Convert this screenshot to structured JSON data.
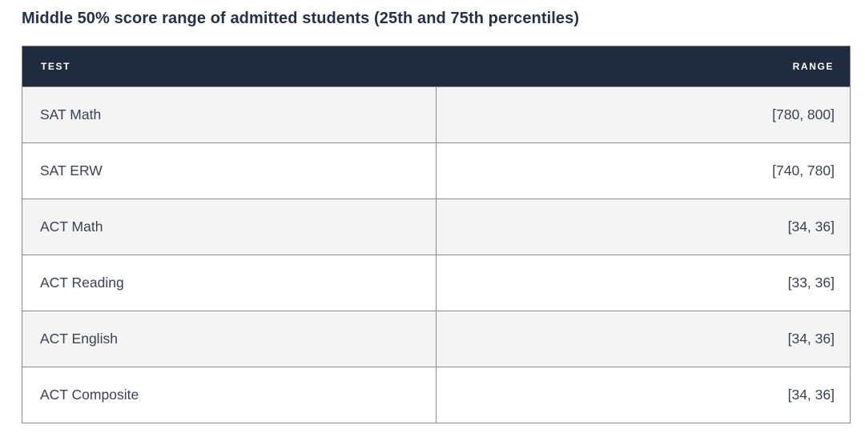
{
  "title": "Middle 50% score range of admitted students (25th and 75th percentiles)",
  "colors": {
    "header_bg": "#202c3e",
    "header_text": "#ffffff",
    "title_text": "#243148",
    "body_text": "#3a4254",
    "row_alt_bg": "#f4f4f5",
    "row_bg": "#ffffff",
    "border": "#8c8c8c"
  },
  "table": {
    "columns": [
      "TEST",
      "RANGE"
    ],
    "rows": [
      {
        "test": "SAT Math",
        "range": "[780, 800]"
      },
      {
        "test": "SAT ERW",
        "range": "[740, 780]"
      },
      {
        "test": "ACT Math",
        "range": "[34, 36]"
      },
      {
        "test": "ACT Reading",
        "range": "[33, 36]"
      },
      {
        "test": "ACT English",
        "range": "[34, 36]"
      },
      {
        "test": "ACT Composite",
        "range": "[34, 36]"
      }
    ]
  },
  "chart_data": {
    "type": "table",
    "title": "Middle 50% score range of admitted students (25th and 75th percentiles)",
    "columns": [
      "TEST",
      "RANGE"
    ],
    "rows": [
      [
        "SAT Math",
        "[780, 800]"
      ],
      [
        "SAT ERW",
        "[740, 780]"
      ],
      [
        "ACT Math",
        "[34, 36]"
      ],
      [
        "ACT Reading",
        "[33, 36]"
      ],
      [
        "ACT English",
        "[34, 36]"
      ],
      [
        "ACT Composite",
        "[34, 36]"
      ]
    ],
    "series": [
      {
        "name": "25th percentile",
        "categories": [
          "SAT Math",
          "SAT ERW",
          "ACT Math",
          "ACT Reading",
          "ACT English",
          "ACT Composite"
        ],
        "values": [
          780,
          740,
          34,
          33,
          34,
          34
        ]
      },
      {
        "name": "75th percentile",
        "categories": [
          "SAT Math",
          "SAT ERW",
          "ACT Math",
          "ACT Reading",
          "ACT English",
          "ACT Composite"
        ],
        "values": [
          800,
          780,
          36,
          36,
          36,
          36
        ]
      }
    ]
  }
}
